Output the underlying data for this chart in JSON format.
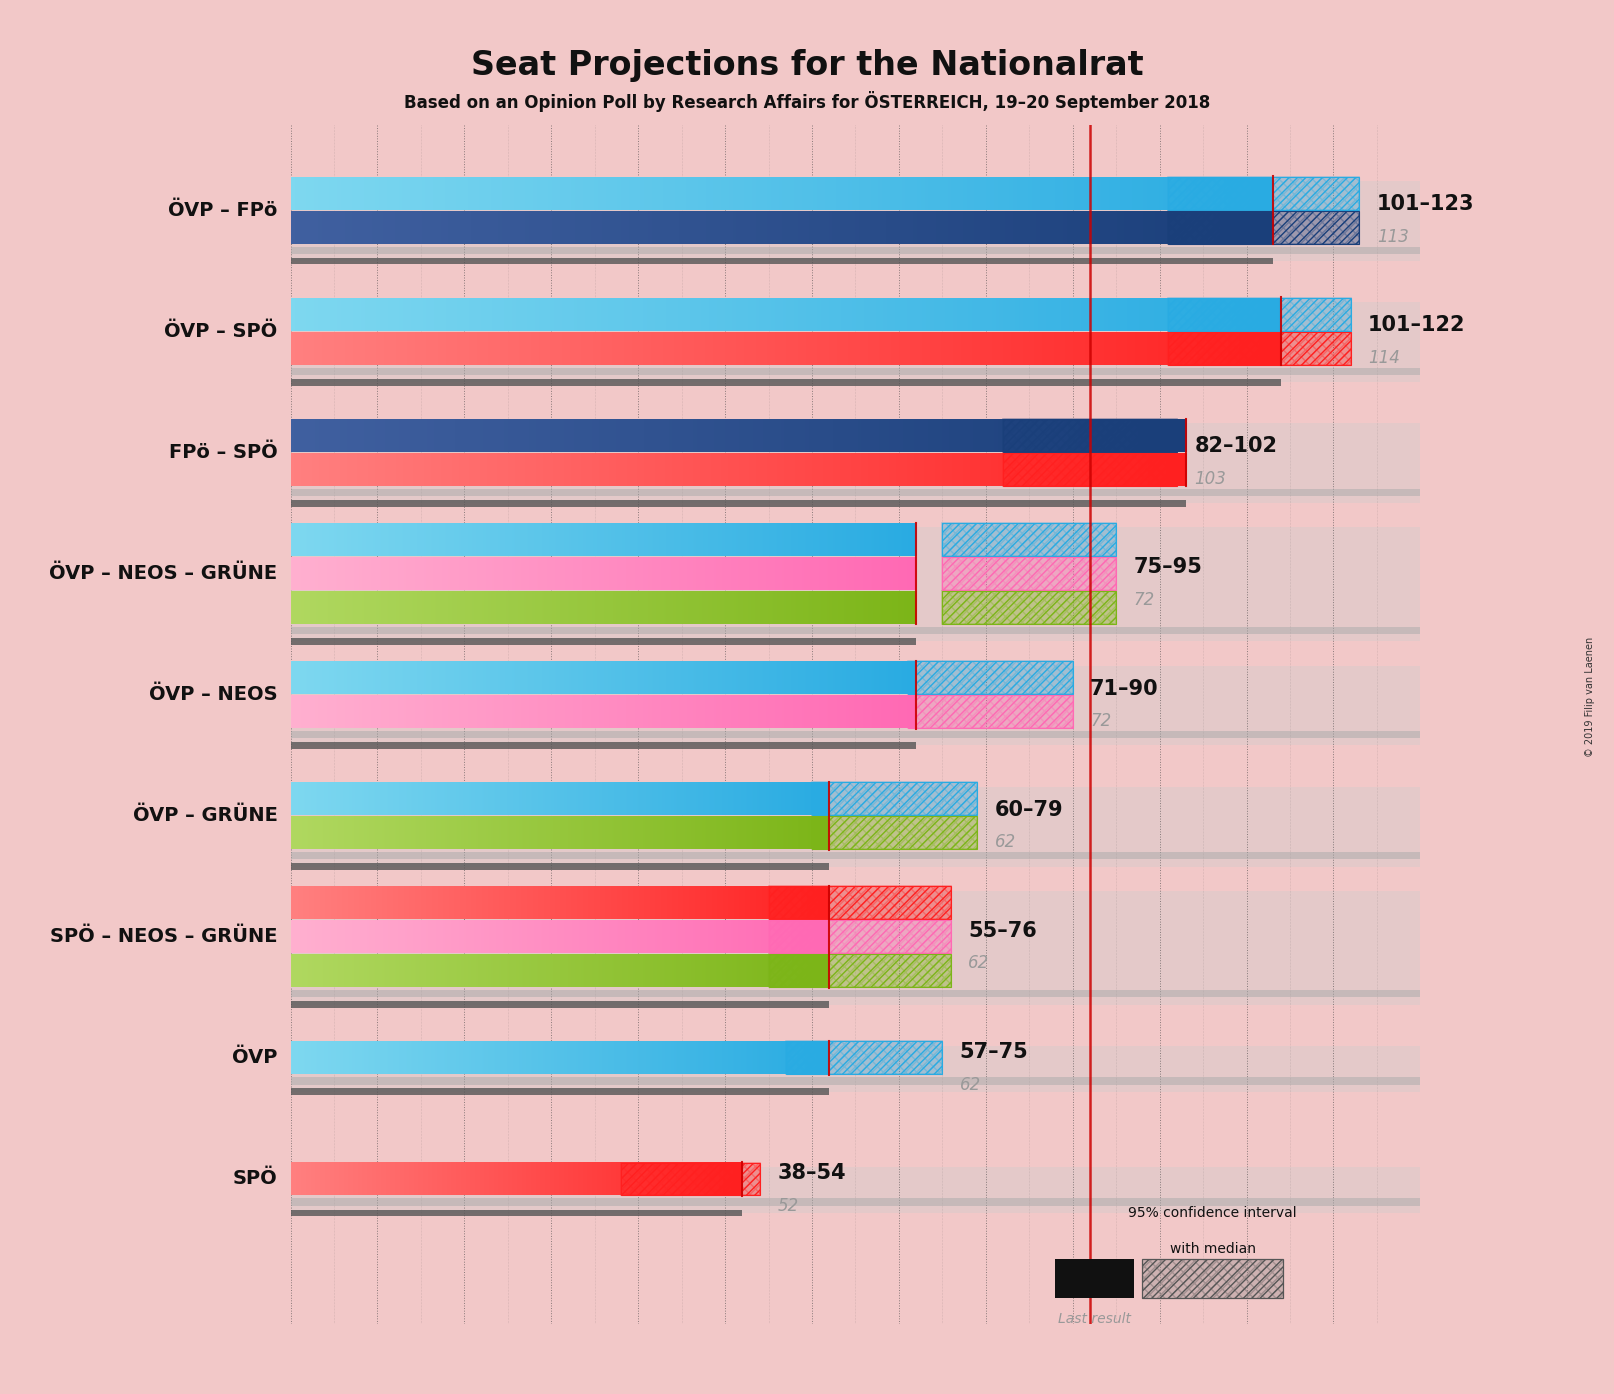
{
  "title": "Seat Projections for the Nationalrat",
  "subtitle": "Based on an Opinion Poll by Research Affairs for ÖSTERREICH, 19–20 September 2018",
  "copyright": "© 2019 Filip van Laenen",
  "background_color": "#f2c8c8",
  "majority_line": 92,
  "xlim_max": 130,
  "coalitions": [
    {
      "name": "ÖVP – FPö",
      "range_label": "101–123",
      "median": 113,
      "ci_low": 101,
      "ci_high": 123,
      "last_result": 113,
      "party_colors": [
        "#29ABE2",
        "#1A3F7A"
      ],
      "gradient_starts": [
        "#7ED8F0",
        "#4060A0"
      ],
      "ci_hatch_colors": [
        "#29ABE2",
        "#1A3F7A"
      ]
    },
    {
      "name": "ÖVP – SPÖ",
      "range_label": "101–122",
      "median": 114,
      "ci_low": 101,
      "ci_high": 122,
      "last_result": 114,
      "party_colors": [
        "#29ABE2",
        "#FF2020"
      ],
      "gradient_starts": [
        "#7ED8F0",
        "#FF8080"
      ],
      "ci_hatch_colors": [
        "#29ABE2",
        "#FF2020"
      ]
    },
    {
      "name": "FPö – SPÖ",
      "range_label": "82–102",
      "median": 103,
      "ci_low": 82,
      "ci_high": 102,
      "last_result": 103,
      "party_colors": [
        "#1A3F7A",
        "#FF2020"
      ],
      "gradient_starts": [
        "#4060A0",
        "#FF8080"
      ],
      "ci_hatch_colors": [
        "#1A3F7A",
        "#FF2020"
      ]
    },
    {
      "name": "ÖVP – NEOS – GRÜNE",
      "range_label": "75–95",
      "median": 72,
      "ci_low": 75,
      "ci_high": 95,
      "last_result": 72,
      "party_colors": [
        "#29ABE2",
        "#FF69B4",
        "#7CB518"
      ],
      "gradient_starts": [
        "#7ED8F0",
        "#FFB0D0",
        "#B0D860"
      ],
      "ci_hatch_colors": [
        "#29ABE2",
        "#FF69B4",
        "#7CB518"
      ]
    },
    {
      "name": "ÖVP – NEOS",
      "range_label": "71–90",
      "median": 72,
      "ci_low": 71,
      "ci_high": 90,
      "last_result": 72,
      "party_colors": [
        "#29ABE2",
        "#FF69B4"
      ],
      "gradient_starts": [
        "#7ED8F0",
        "#FFB0D0"
      ],
      "ci_hatch_colors": [
        "#29ABE2",
        "#FF69B4"
      ]
    },
    {
      "name": "ÖVP – GRÜNE",
      "range_label": "60–79",
      "median": 62,
      "ci_low": 60,
      "ci_high": 79,
      "last_result": 62,
      "party_colors": [
        "#29ABE2",
        "#7CB518"
      ],
      "gradient_starts": [
        "#7ED8F0",
        "#B0D860"
      ],
      "ci_hatch_colors": [
        "#29ABE2",
        "#7CB518"
      ]
    },
    {
      "name": "SPÖ – NEOS – GRÜNE",
      "range_label": "55–76",
      "median": 62,
      "ci_low": 55,
      "ci_high": 76,
      "last_result": 62,
      "party_colors": [
        "#FF2020",
        "#FF69B4",
        "#7CB518"
      ],
      "gradient_starts": [
        "#FF8080",
        "#FFB0D0",
        "#B0D860"
      ],
      "ci_hatch_colors": [
        "#FF2020",
        "#FF69B4",
        "#7CB518"
      ]
    },
    {
      "name": "ÖVP",
      "range_label": "57–75",
      "median": 62,
      "ci_low": 57,
      "ci_high": 75,
      "last_result": 62,
      "party_colors": [
        "#29ABE2"
      ],
      "gradient_starts": [
        "#7ED8F0"
      ],
      "ci_hatch_colors": [
        "#29ABE2"
      ]
    },
    {
      "name": "SPÖ",
      "range_label": "38–54",
      "median": 52,
      "ci_low": 38,
      "ci_high": 54,
      "last_result": 52,
      "party_colors": [
        "#FF2020"
      ],
      "gradient_starts": [
        "#FF8080"
      ],
      "ci_hatch_colors": [
        "#FF2020"
      ]
    }
  ]
}
